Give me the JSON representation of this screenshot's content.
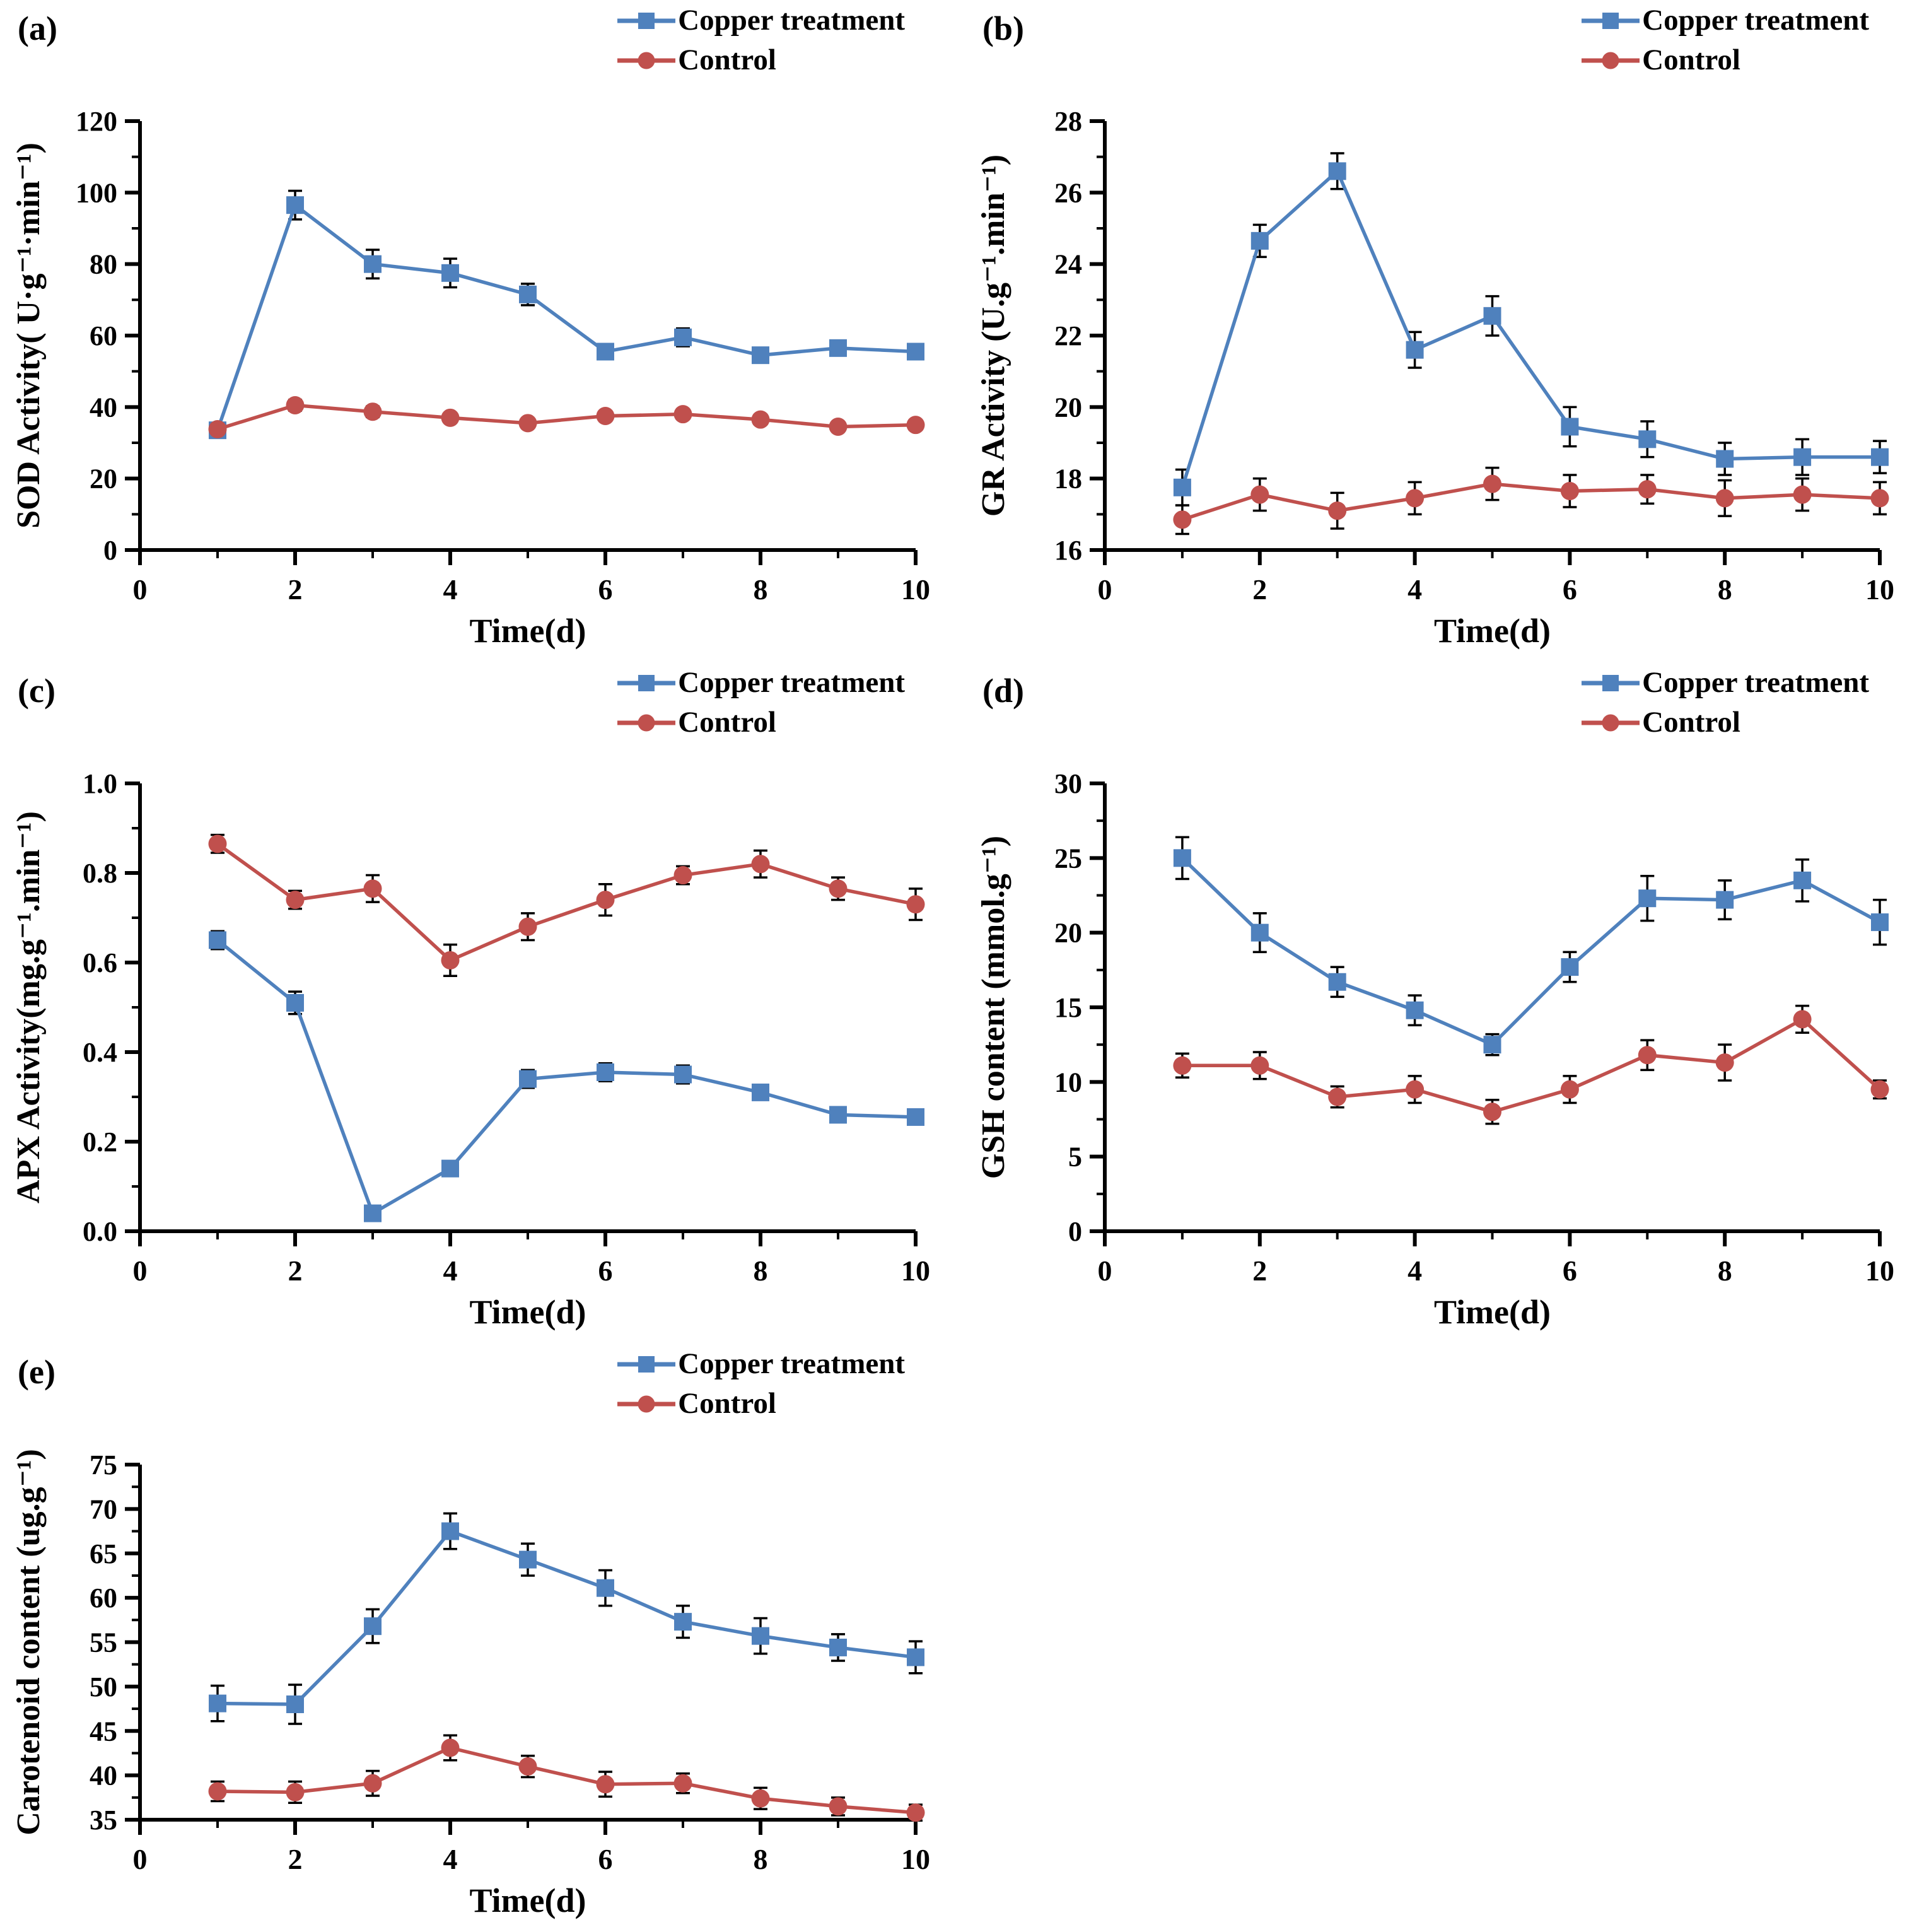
{
  "figure_colors": {
    "copper": "#4F81BD",
    "control": "#C0504D",
    "axis": "#000000",
    "background": "#ffffff"
  },
  "chart_data": [
    {
      "id": "a",
      "panel_label": "(a)",
      "type": "line",
      "title": "",
      "xlabel": "Time(d)",
      "ylabel": "SOD Activity( U·g⁻¹·min⁻¹)",
      "xlim": [
        0,
        10
      ],
      "ylim": [
        0,
        120
      ],
      "xticks_major": [
        0,
        2,
        4,
        6,
        8,
        10
      ],
      "xtick_labels": [
        "0",
        "2",
        "4",
        "6",
        "8",
        "10"
      ],
      "xticks_minor": [
        1,
        3,
        5,
        7,
        9
      ],
      "yticks_major": [
        0,
        20,
        40,
        60,
        80,
        100,
        120
      ],
      "ytick_labels": [
        "0",
        "20",
        "40",
        "60",
        "80",
        "100",
        "120"
      ],
      "yticks_minor": [
        10,
        30,
        50,
        70,
        90,
        110
      ],
      "x": [
        1,
        2,
        3,
        4,
        5,
        6,
        7,
        8,
        9,
        10
      ],
      "grid": false,
      "legend_position": "top-right",
      "series": [
        {
          "name": "Copper treatment",
          "marker": "square",
          "color": "#4F81BD",
          "values": [
            33.5,
            96.5,
            80.0,
            77.5,
            71.5,
            55.5,
            59.5,
            54.5,
            56.5,
            55.5
          ],
          "errors": [
            1.5,
            4.0,
            4.0,
            4.0,
            3.0,
            2.0,
            2.5,
            2.0,
            2.0,
            2.0
          ]
        },
        {
          "name": "Control",
          "marker": "circle",
          "color": "#C0504D",
          "values": [
            33.8,
            40.5,
            38.7,
            37.0,
            35.5,
            37.5,
            38.0,
            36.5,
            34.5,
            35.0
          ],
          "errors": [
            1.2,
            1.5,
            1.5,
            1.0,
            1.2,
            1.0,
            1.0,
            1.2,
            1.2,
            1.0
          ]
        }
      ]
    },
    {
      "id": "b",
      "panel_label": "(b)",
      "type": "line",
      "title": "",
      "xlabel": "Time(d)",
      "ylabel": "GR Activity (U.g⁻¹.min⁻¹)",
      "xlim": [
        0,
        10
      ],
      "ylim": [
        16,
        28
      ],
      "xticks_major": [
        0,
        2,
        4,
        6,
        8,
        10
      ],
      "xtick_labels": [
        "0",
        "2",
        "4",
        "6",
        "8",
        "10"
      ],
      "xticks_minor": [
        1,
        3,
        5,
        7,
        9
      ],
      "yticks_major": [
        16,
        18,
        20,
        22,
        24,
        26,
        28
      ],
      "ytick_labels": [
        "16",
        "18",
        "20",
        "22",
        "24",
        "26",
        "28"
      ],
      "yticks_minor": [
        17,
        19,
        21,
        23,
        25,
        27
      ],
      "x": [
        1,
        2,
        3,
        4,
        5,
        6,
        7,
        8,
        9,
        10
      ],
      "grid": false,
      "legend_position": "top-right",
      "series": [
        {
          "name": "Copper treatment",
          "marker": "square",
          "color": "#4F81BD",
          "values": [
            17.75,
            24.65,
            26.6,
            21.6,
            22.55,
            19.45,
            19.1,
            18.55,
            18.6,
            18.6
          ],
          "errors": [
            0.5,
            0.45,
            0.5,
            0.5,
            0.55,
            0.55,
            0.5,
            0.45,
            0.5,
            0.45
          ]
        },
        {
          "name": "Control",
          "marker": "circle",
          "color": "#C0504D",
          "values": [
            16.85,
            17.55,
            17.1,
            17.45,
            17.85,
            17.65,
            17.7,
            17.45,
            17.55,
            17.45
          ],
          "errors": [
            0.4,
            0.45,
            0.5,
            0.45,
            0.45,
            0.45,
            0.4,
            0.5,
            0.45,
            0.45
          ]
        }
      ]
    },
    {
      "id": "c",
      "panel_label": "(c)",
      "type": "line",
      "title": "",
      "xlabel": "Time(d)",
      "ylabel": "APX Activity(mg.g⁻¹.min⁻¹)",
      "xlim": [
        0,
        10
      ],
      "ylim": [
        0,
        1.0
      ],
      "xticks_major": [
        0,
        2,
        4,
        6,
        8,
        10
      ],
      "xtick_labels": [
        "0",
        "2",
        "4",
        "6",
        "8",
        "10"
      ],
      "xticks_minor": [
        1,
        3,
        5,
        7,
        9
      ],
      "yticks_major": [
        0,
        0.2,
        0.4,
        0.6,
        0.8,
        1.0
      ],
      "ytick_labels": [
        "0.0",
        "0.2",
        "0.4",
        "0.6",
        "0.8",
        "1.0"
      ],
      "yticks_minor": [
        0.1,
        0.3,
        0.5,
        0.7,
        0.9
      ],
      "x": [
        1,
        2,
        3,
        4,
        5,
        6,
        7,
        8,
        9,
        10
      ],
      "grid": false,
      "legend_position": "top-right",
      "series": [
        {
          "name": "Copper treatment",
          "marker": "square",
          "color": "#4F81BD",
          "values": [
            0.65,
            0.51,
            0.04,
            0.14,
            0.34,
            0.355,
            0.35,
            0.31,
            0.26,
            0.255
          ],
          "errors": [
            0.02,
            0.025,
            0.015,
            0.015,
            0.02,
            0.02,
            0.02,
            0.015,
            0.015,
            0.01
          ]
        },
        {
          "name": "Control",
          "marker": "circle",
          "color": "#C0504D",
          "values": [
            0.865,
            0.74,
            0.765,
            0.605,
            0.68,
            0.74,
            0.795,
            0.82,
            0.765,
            0.73
          ],
          "errors": [
            0.02,
            0.02,
            0.03,
            0.035,
            0.03,
            0.035,
            0.02,
            0.03,
            0.025,
            0.035
          ]
        }
      ]
    },
    {
      "id": "d",
      "panel_label": "(d)",
      "type": "line",
      "title": "",
      "xlabel": "Time(d)",
      "ylabel": "GSH  content (mmol.g⁻¹)",
      "xlim": [
        0,
        10
      ],
      "ylim": [
        0,
        30
      ],
      "xticks_major": [
        0,
        2,
        4,
        6,
        8,
        10
      ],
      "xtick_labels": [
        "0",
        "2",
        "4",
        "6",
        "8",
        "10"
      ],
      "xticks_minor": [
        1,
        3,
        5,
        7,
        9
      ],
      "yticks_major": [
        0,
        5,
        10,
        15,
        20,
        25,
        30
      ],
      "ytick_labels": [
        "0",
        "5",
        "10",
        "15",
        "20",
        "25",
        "30"
      ],
      "yticks_minor": [
        2.5,
        7.5,
        12.5,
        17.5,
        22.5,
        27.5
      ],
      "x": [
        1,
        2,
        3,
        4,
        5,
        6,
        7,
        8,
        9,
        10
      ],
      "grid": false,
      "legend_position": "top-right",
      "series": [
        {
          "name": "Copper treatment",
          "marker": "square",
          "color": "#4F81BD",
          "values": [
            25.0,
            20.0,
            16.7,
            14.8,
            12.5,
            17.7,
            22.3,
            22.2,
            23.5,
            20.7
          ],
          "errors": [
            1.4,
            1.3,
            1.0,
            1.0,
            0.7,
            1.0,
            1.5,
            1.3,
            1.4,
            1.5
          ]
        },
        {
          "name": "Control",
          "marker": "circle",
          "color": "#C0504D",
          "values": [
            11.1,
            11.1,
            9.0,
            9.5,
            8.0,
            9.5,
            11.8,
            11.3,
            14.2,
            9.5
          ],
          "errors": [
            0.8,
            0.9,
            0.7,
            0.9,
            0.8,
            0.9,
            1.0,
            1.2,
            0.9,
            0.6
          ]
        }
      ]
    },
    {
      "id": "e",
      "panel_label": "(e)",
      "type": "line",
      "title": "",
      "xlabel": "Time(d)",
      "ylabel": "Carotenoid content  (ug.g⁻¹)",
      "xlim": [
        0,
        10
      ],
      "ylim": [
        35,
        75
      ],
      "xticks_major": [
        0,
        2,
        4,
        6,
        8,
        10
      ],
      "xtick_labels": [
        "0",
        "2",
        "4",
        "6",
        "8",
        "10"
      ],
      "xticks_minor": [
        1,
        3,
        5,
        7,
        9
      ],
      "yticks_major": [
        35,
        40,
        45,
        50,
        55,
        60,
        65,
        70,
        75
      ],
      "ytick_labels": [
        "35",
        "40",
        "45",
        "50",
        "55",
        "60",
        "65",
        "70",
        "75"
      ],
      "yticks_minor": [
        37.5,
        42.5,
        47.5,
        52.5,
        57.5,
        62.5,
        67.5,
        72.5
      ],
      "x": [
        1,
        2,
        3,
        4,
        5,
        6,
        7,
        8,
        9,
        10
      ],
      "grid": false,
      "legend_position": "top-right",
      "series": [
        {
          "name": "Copper treatment",
          "marker": "square",
          "color": "#4F81BD",
          "values": [
            48.1,
            48.0,
            56.8,
            67.5,
            64.3,
            61.1,
            57.3,
            55.7,
            54.4,
            53.3
          ],
          "errors": [
            2.0,
            2.2,
            1.9,
            2.0,
            1.8,
            2.0,
            1.8,
            2.0,
            1.5,
            1.8
          ]
        },
        {
          "name": "Control",
          "marker": "circle",
          "color": "#C0504D",
          "values": [
            38.2,
            38.1,
            39.1,
            43.1,
            41.0,
            39.0,
            39.1,
            37.4,
            36.5,
            35.8
          ],
          "errors": [
            1.1,
            1.2,
            1.4,
            1.4,
            1.2,
            1.4,
            1.1,
            1.2,
            1.0,
            0.9
          ]
        }
      ]
    }
  ]
}
